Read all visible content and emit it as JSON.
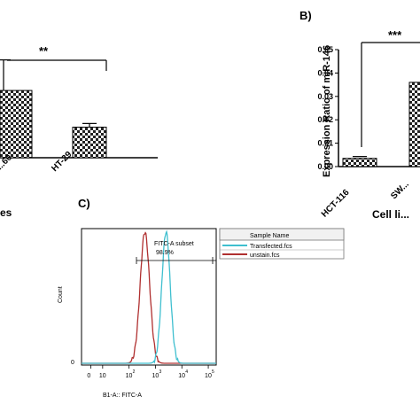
{
  "chart_data": [
    {
      "panel": "A",
      "type": "bar",
      "categories": [
        "...60",
        "HT-29"
      ],
      "values": [
        0.55,
        0.25
      ],
      "errors": [
        0.25,
        0.03
      ],
      "xlabel": "...es",
      "ylabel": "",
      "ylim": [
        0,
        1.0
      ],
      "significance": "**"
    },
    {
      "panel": "B",
      "type": "bar",
      "panel_label": "B)",
      "categories": [
        "HCT-116",
        "SW..."
      ],
      "values": [
        0.0035,
        0.036
      ],
      "errors": [
        0.0008,
        0.0
      ],
      "xlabel": "Cell li...",
      "ylabel": "Expression Ratio of miR-146",
      "ylim": [
        0,
        0.05
      ],
      "yticks": [
        "0.00",
        "0.01",
        "0.02",
        "0.03",
        "0.04",
        "0.05"
      ],
      "significance": "***"
    },
    {
      "panel": "C",
      "type": "line",
      "panel_label": "C)",
      "xlabel": "B1-A:: FITC-A",
      "ylabel": "Count",
      "xscale": "log",
      "xticks": [
        "0",
        "10",
        "10",
        "10",
        "10",
        "10"
      ],
      "xtick_exponents": [
        "",
        "",
        "2",
        "3",
        "4",
        "5"
      ],
      "ytick_zero": "0",
      "gate_label": "FITC-A subset",
      "gate_percent": "98.9%",
      "legend": {
        "header": "Sample Name",
        "entries": [
          {
            "name": "Transfected.fcs",
            "color": "#3fbfcf"
          },
          {
            "name": "unstain.fcs",
            "color": "#b03030"
          }
        ]
      },
      "series": [
        {
          "name": "unstain.fcs",
          "color": "#b03030",
          "peak_log10": 2.6,
          "width": 0.18
        },
        {
          "name": "Transfected.fcs",
          "color": "#3fbfcf",
          "peak_log10": 3.4,
          "width": 0.16
        }
      ]
    }
  ]
}
